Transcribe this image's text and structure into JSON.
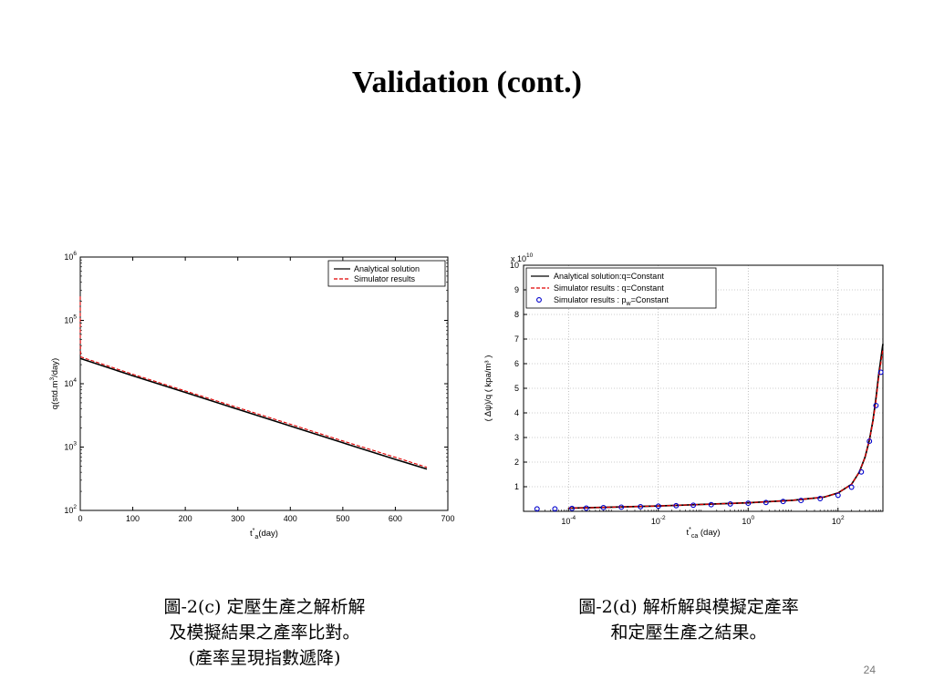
{
  "slide": {
    "title": "Validation (cont.)",
    "page_number": "24",
    "caption_left": [
      "圖-2(c) 定壓生產之解析解",
      "及模擬結果之產率比對。",
      "(產率呈現指數遞降)"
    ],
    "caption_right": [
      "圖-2(d) 解析解與模擬定產率",
      "和定壓生產之結果。"
    ]
  },
  "chart_data": [
    {
      "type": "line",
      "xlabel_main": "t",
      "xlabel_sup": "*",
      "xlabel_sub": "a",
      "xlabel_rest": "(day)",
      "ylabel_pre": "q(std.m",
      "ylabel_sup": "3",
      "ylabel_post": "/day)",
      "xlim": [
        0,
        700
      ],
      "ylim": [
        100,
        1000000
      ],
      "y_scale": "log",
      "x_ticks": [
        0,
        100,
        200,
        300,
        400,
        500,
        600,
        700
      ],
      "x_tick_labels": [
        "0",
        "100",
        "200",
        "300",
        "400",
        "500",
        "600",
        "700"
      ],
      "y_ticks": [
        100,
        1000,
        10000,
        100000,
        1000000
      ],
      "y_tick_base": "10",
      "y_tick_exps": [
        "2",
        "3",
        "4",
        "5",
        "6"
      ],
      "grid": false,
      "legend_position": "top-right",
      "series": [
        {
          "name": "Analytical solution",
          "color": "#000000",
          "style": "solid",
          "x": [
            0,
            100,
            200,
            300,
            400,
            500,
            600,
            660
          ],
          "y": [
            25000,
            13400,
            7300,
            3950,
            2150,
            1170,
            640,
            450
          ]
        },
        {
          "name": "Simulator results",
          "color": "#e00000",
          "style": "dashed",
          "x": [
            0,
            0,
            0.5,
            1,
            100,
            200,
            300,
            400,
            500,
            600,
            660
          ],
          "y": [
            240000,
            60000,
            30000,
            26500,
            14100,
            7700,
            4200,
            2300,
            1250,
            690,
            480
          ]
        }
      ]
    },
    {
      "type": "line",
      "xlabel_main": "t",
      "xlabel_sup": "*",
      "xlabel_sub": "ca",
      "xlabel_rest": " (day)",
      "ylabel": "( Δψ)/q   ( kpa/m³ )",
      "x_scale": "log",
      "xlim": [
        1e-05,
        1000
      ],
      "ylim": [
        0,
        10
      ],
      "y_multiplier_base": "x 10",
      "y_multiplier_exp": "10",
      "x_ticks": [
        0.0001,
        0.01,
        1,
        100
      ],
      "x_tick_base": "10",
      "x_tick_exps": [
        "-4",
        "-2",
        "0",
        "2"
      ],
      "y_ticks": [
        1,
        2,
        3,
        4,
        5,
        6,
        7,
        8,
        9,
        10
      ],
      "y_tick_labels": [
        "1",
        "2",
        "3",
        "4",
        "5",
        "6",
        "7",
        "8",
        "9",
        "10"
      ],
      "grid": true,
      "legend_position": "top-left",
      "series": [
        {
          "name": "Analytical solution:q=Constant",
          "color": "#000000",
          "style": "solid",
          "x": [
            0.0001,
            0.001,
            0.01,
            0.1,
            1,
            10,
            50,
            100,
            200,
            300,
            400,
            500,
            600,
            700,
            800,
            1000
          ],
          "y": [
            0.13,
            0.17,
            0.22,
            0.28,
            0.35,
            0.45,
            0.58,
            0.75,
            1.1,
            1.6,
            2.2,
            2.9,
            3.7,
            4.6,
            5.5,
            6.8
          ]
        },
        {
          "name": "Simulator results : q=Constant",
          "color": "#e00000",
          "style": "dashed",
          "x": [
            0.0001,
            0.001,
            0.01,
            0.1,
            1,
            10,
            50,
            100,
            200,
            300,
            400,
            500,
            600,
            700,
            800,
            1000
          ],
          "y": [
            0.13,
            0.17,
            0.22,
            0.28,
            0.35,
            0.45,
            0.58,
            0.75,
            1.1,
            1.6,
            2.2,
            2.9,
            3.65,
            4.5,
            5.4,
            6.6
          ]
        },
        {
          "name_pre": "Simulator results : p",
          "name_sub": "w",
          "name_post": "=Constant",
          "color": "#0000cc",
          "style": "markers",
          "x": [
            2e-05,
            5e-05,
            0.00012,
            0.00025,
            0.0006,
            0.0015,
            0.004,
            0.01,
            0.025,
            0.06,
            0.15,
            0.4,
            1,
            2.5,
            6,
            15,
            40,
            100,
            200,
            330,
            500,
            700,
            900
          ],
          "y": [
            0.1,
            0.1,
            0.12,
            0.13,
            0.15,
            0.17,
            0.19,
            0.21,
            0.23,
            0.25,
            0.27,
            0.3,
            0.33,
            0.36,
            0.4,
            0.44,
            0.52,
            0.65,
            0.98,
            1.6,
            2.85,
            4.3,
            5.65
          ]
        }
      ]
    }
  ]
}
